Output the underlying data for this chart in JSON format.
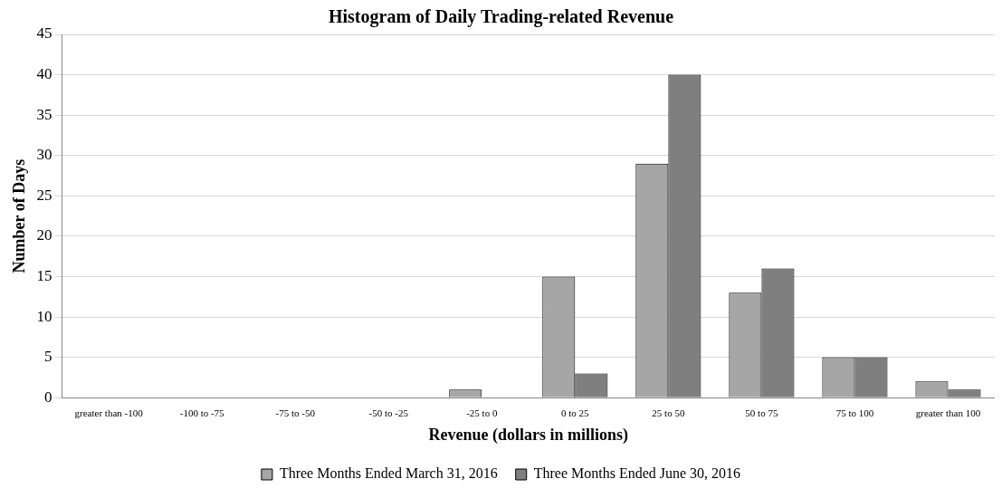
{
  "chart_data": {
    "type": "bar",
    "title": "Histogram of Daily Trading-related Revenue",
    "xlabel": "Revenue (dollars in millions)",
    "ylabel": "Number of Days",
    "categories": [
      "greater than -100",
      "-100 to -75",
      "-75 to -50",
      "-50 to -25",
      "-25 to 0",
      "0 to 25",
      "25 to 50",
      "50 to 75",
      "75 to 100",
      "greater than 100"
    ],
    "series": [
      {
        "name": "Three Months Ended March 31, 2016",
        "color": "#a6a6a6",
        "values": [
          0,
          0,
          0,
          0,
          1,
          15,
          29,
          13,
          5,
          2
        ]
      },
      {
        "name": "Three Months Ended June 30, 2016",
        "color": "#7f7f7f",
        "values": [
          0,
          0,
          0,
          0,
          0,
          3,
          40,
          16,
          5,
          1
        ]
      }
    ],
    "ylim": [
      0,
      45
    ],
    "yticks": [
      0,
      5,
      10,
      15,
      20,
      25,
      30,
      35,
      40,
      45
    ],
    "grid": "y",
    "legend": "bottom"
  }
}
